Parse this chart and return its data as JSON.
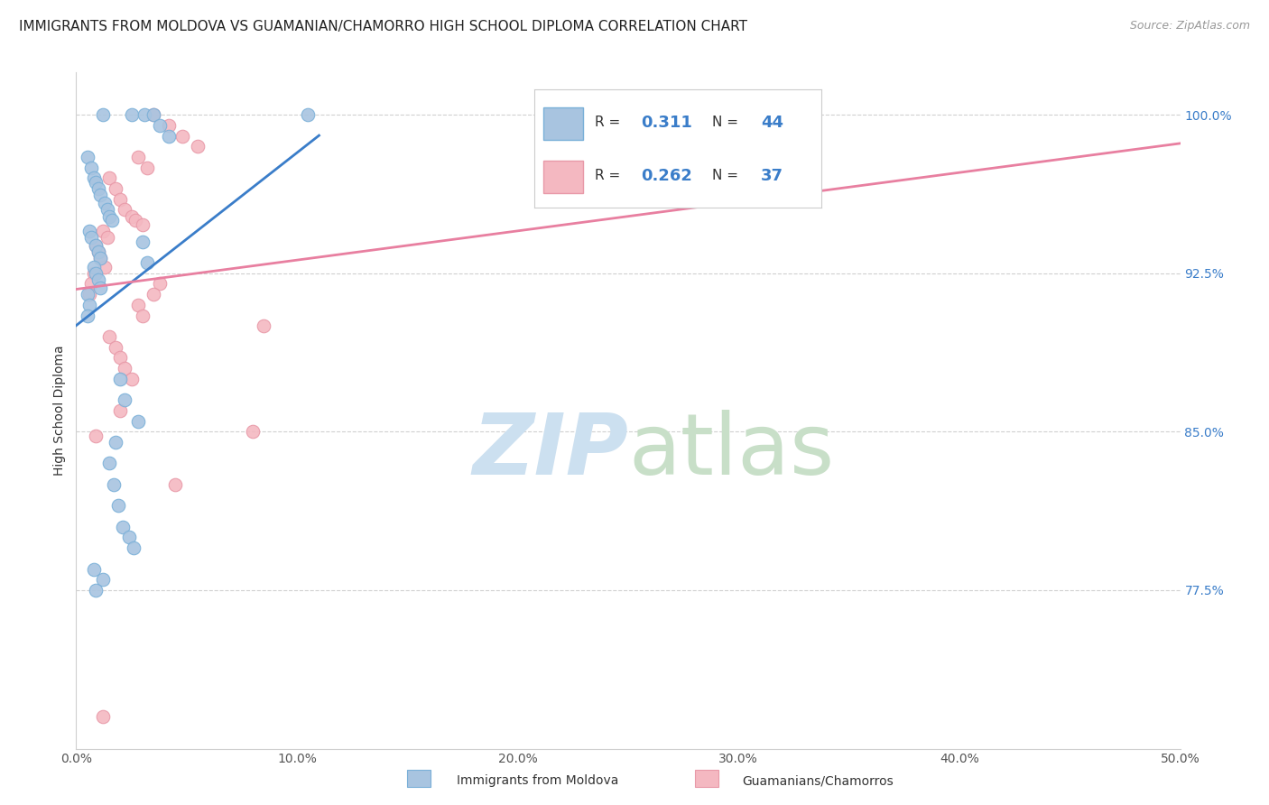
{
  "title": "IMMIGRANTS FROM MOLDOVA VS GUAMANIAN/CHAMORRO HIGH SCHOOL DIPLOMA CORRELATION CHART",
  "source": "Source: ZipAtlas.com",
  "ylabel": "High School Diploma",
  "y_ticks": [
    77.5,
    85.0,
    92.5,
    100.0
  ],
  "y_tick_labels": [
    "77.5%",
    "85.0%",
    "92.5%",
    "100.0%"
  ],
  "xlim": [
    0.0,
    50.0
  ],
  "ylim": [
    70.0,
    102.0
  ],
  "blue_color": "#a8c4e0",
  "blue_edge": "#7ab0d8",
  "pink_color": "#f4b8c1",
  "pink_edge": "#e899a8",
  "blue_line_color": "#3a7dc9",
  "pink_line_color": "#e87fa0",
  "blue_R": "0.311",
  "blue_N": "44",
  "pink_R": "0.262",
  "pink_N": "37",
  "label1": "Immigrants from Moldova",
  "label2": "Guamanians/Chamorros",
  "blue_scatter_x": [
    1.2,
    2.5,
    3.1,
    3.5,
    3.8,
    4.2,
    0.5,
    0.7,
    0.8,
    0.9,
    1.0,
    1.1,
    1.3,
    1.4,
    1.5,
    1.6,
    0.6,
    0.7,
    0.9,
    1.0,
    1.1,
    0.8,
    0.9,
    1.0,
    1.1,
    0.5,
    0.6,
    0.5,
    3.0,
    3.2,
    2.0,
    2.2,
    2.8,
    1.8,
    1.5,
    1.7,
    1.9,
    2.1,
    2.4,
    2.6,
    0.8,
    1.2,
    0.9,
    10.5
  ],
  "blue_scatter_y": [
    100.0,
    100.0,
    100.0,
    100.0,
    99.5,
    99.0,
    98.0,
    97.5,
    97.0,
    96.8,
    96.5,
    96.2,
    95.8,
    95.5,
    95.2,
    95.0,
    94.5,
    94.2,
    93.8,
    93.5,
    93.2,
    92.8,
    92.5,
    92.2,
    91.8,
    91.5,
    91.0,
    90.5,
    94.0,
    93.0,
    87.5,
    86.5,
    85.5,
    84.5,
    83.5,
    82.5,
    81.5,
    80.5,
    80.0,
    79.5,
    78.5,
    78.0,
    77.5,
    100.0
  ],
  "pink_scatter_x": [
    3.5,
    4.2,
    4.8,
    5.5,
    2.8,
    3.2,
    1.5,
    1.8,
    2.0,
    2.2,
    2.5,
    2.7,
    3.0,
    1.2,
    1.4,
    0.9,
    1.0,
    1.1,
    1.3,
    0.8,
    0.7,
    0.6,
    3.8,
    3.5,
    2.8,
    3.0,
    8.5,
    1.5,
    1.8,
    2.0,
    2.2,
    2.5,
    2.0,
    0.9,
    8.0,
    4.5,
    1.2
  ],
  "pink_scatter_y": [
    100.0,
    99.5,
    99.0,
    98.5,
    98.0,
    97.5,
    97.0,
    96.5,
    96.0,
    95.5,
    95.2,
    95.0,
    94.8,
    94.5,
    94.2,
    93.8,
    93.5,
    93.2,
    92.8,
    92.5,
    92.0,
    91.5,
    92.0,
    91.5,
    91.0,
    90.5,
    90.0,
    89.5,
    89.0,
    88.5,
    88.0,
    87.5,
    86.0,
    84.8,
    85.0,
    82.5,
    71.5
  ],
  "dot_size": 110,
  "watermark_zip": "ZIP",
  "watermark_atlas": "atlas",
  "watermark_color_zip": "#c8dff0",
  "watermark_color_atlas": "#d8e8d8",
  "title_fontsize": 11,
  "axis_label_fontsize": 10,
  "tick_fontsize": 10,
  "rn_fontsize": 13,
  "value_color": "#3a7dc9",
  "grid_color": "#d0d0d0",
  "source_color": "#999999"
}
